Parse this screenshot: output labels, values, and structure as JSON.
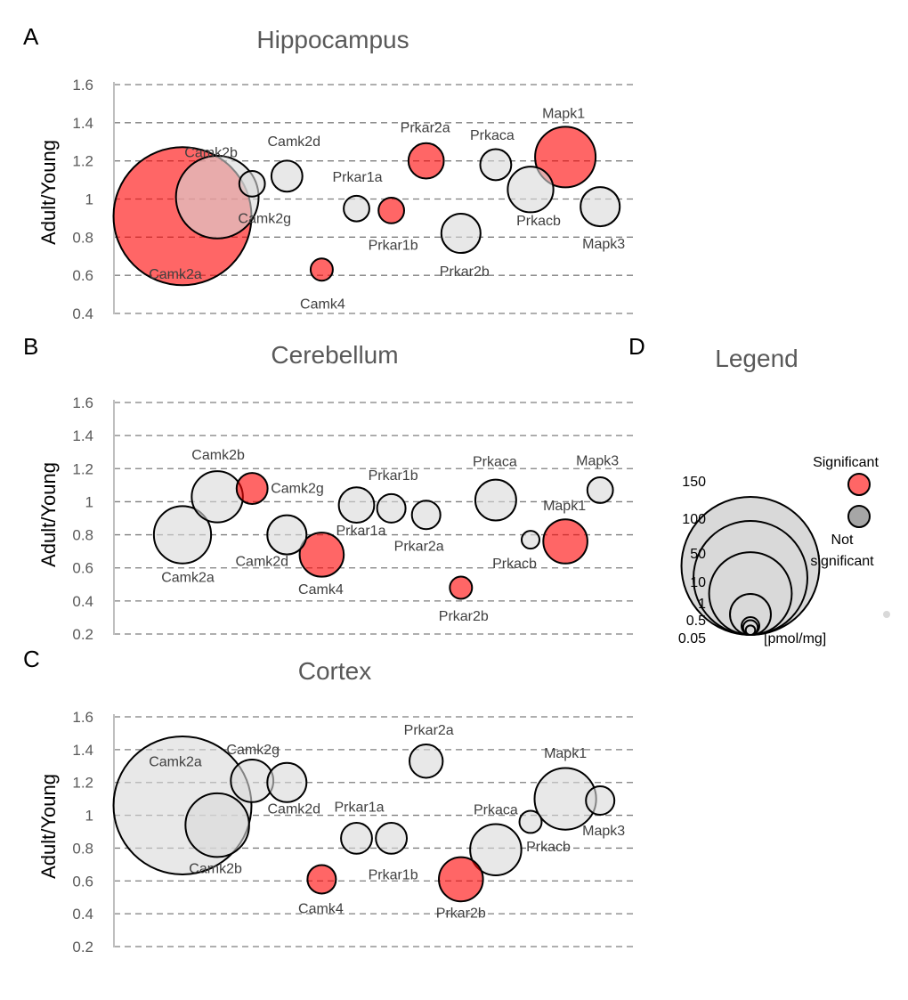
{
  "colors": {
    "significant": "#ff0000",
    "not_significant": "#d9d9d9",
    "bubble_alpha": 0.6
  },
  "chart_data": [
    {
      "type": "scatter",
      "panel": "A",
      "title": "Hippocampus",
      "xlabel": "",
      "ylabel": "Adult/Young",
      "ylim": [
        0.4,
        1.6
      ],
      "yticks": [
        "0.4",
        "0.6",
        "0.8",
        "1",
        "1.2",
        "1.4",
        "1.6"
      ],
      "points": [
        {
          "label": "Camk2a",
          "x": 1,
          "y": 0.91,
          "size": 150,
          "significant": true
        },
        {
          "label": "Camk2b",
          "x": 2,
          "y": 1.01,
          "size": 50,
          "significant": false
        },
        {
          "label": "Camk2g",
          "x": 3,
          "y": 1.08,
          "size": 3,
          "significant": false
        },
        {
          "label": "Camk2d",
          "x": 4,
          "y": 1.12,
          "size": 5,
          "significant": false
        },
        {
          "label": "Camk4",
          "x": 5,
          "y": 0.63,
          "size": 2,
          "significant": true
        },
        {
          "label": "Prkar1a",
          "x": 6,
          "y": 0.95,
          "size": 3,
          "significant": false
        },
        {
          "label": "Prkar1b",
          "x": 7,
          "y": 0.94,
          "size": 3,
          "significant": true
        },
        {
          "label": "Prkar2a",
          "x": 8,
          "y": 1.2,
          "size": 7,
          "significant": true
        },
        {
          "label": "Prkar2b",
          "x": 9,
          "y": 0.82,
          "size": 9,
          "significant": false
        },
        {
          "label": "Prkaca",
          "x": 10,
          "y": 1.18,
          "size": 5,
          "significant": false
        },
        {
          "label": "Prkacb",
          "x": 11,
          "y": 1.05,
          "size": 13,
          "significant": false
        },
        {
          "label": "Mapk1",
          "x": 12,
          "y": 1.22,
          "size": 25,
          "significant": true
        },
        {
          "label": "Mapk3",
          "x": 13,
          "y": 0.96,
          "size": 9,
          "significant": false
        }
      ]
    },
    {
      "type": "scatter",
      "panel": "B",
      "title": "Cerebellum",
      "xlabel": "",
      "ylabel": "Adult/Young",
      "ylim": [
        0.2,
        1.6
      ],
      "yticks": [
        "0.2",
        "0.4",
        "0.6",
        "0.8",
        "1",
        "1.2",
        "1.4",
        "1.6"
      ],
      "points": [
        {
          "label": "Camk2a",
          "x": 1,
          "y": 0.8,
          "size": 22,
          "significant": false
        },
        {
          "label": "Camk2b",
          "x": 2,
          "y": 1.03,
          "size": 17,
          "significant": false
        },
        {
          "label": "Camk2g",
          "x": 3,
          "y": 1.08,
          "size": 5,
          "significant": true
        },
        {
          "label": "Camk2d",
          "x": 4,
          "y": 0.8,
          "size": 9,
          "significant": false
        },
        {
          "label": "Camk4",
          "x": 5,
          "y": 0.68,
          "size": 12,
          "significant": true
        },
        {
          "label": "Prkar1a",
          "x": 6,
          "y": 0.98,
          "size": 7,
          "significant": false
        },
        {
          "label": "Prkar1b",
          "x": 7,
          "y": 0.96,
          "size": 4,
          "significant": false
        },
        {
          "label": "Prkar2a",
          "x": 8,
          "y": 0.92,
          "size": 4,
          "significant": false
        },
        {
          "label": "Prkar2b",
          "x": 9,
          "y": 0.48,
          "size": 2,
          "significant": true
        },
        {
          "label": "Prkaca",
          "x": 10,
          "y": 1.01,
          "size": 10,
          "significant": false
        },
        {
          "label": "Prkacb",
          "x": 11,
          "y": 0.77,
          "size": 1,
          "significant": false
        },
        {
          "label": "Mapk1",
          "x": 12,
          "y": 0.76,
          "size": 12,
          "significant": true
        },
        {
          "label": "Mapk3",
          "x": 13,
          "y": 1.07,
          "size": 3,
          "significant": false
        }
      ]
    },
    {
      "type": "scatter",
      "panel": "C",
      "title": "Cortex",
      "xlabel": "",
      "ylabel": "Adult/Young",
      "ylim": [
        0.2,
        1.6
      ],
      "yticks": [
        "0.2",
        "0.4",
        "0.6",
        "0.8",
        "1",
        "1.2",
        "1.4",
        "1.6"
      ],
      "points": [
        {
          "label": "Camk2a",
          "x": 1,
          "y": 1.06,
          "size": 150,
          "significant": false
        },
        {
          "label": "Camk2b",
          "x": 2,
          "y": 0.94,
          "size": 28,
          "significant": false
        },
        {
          "label": "Camk2g",
          "x": 3,
          "y": 1.21,
          "size": 11,
          "significant": false
        },
        {
          "label": "Camk2d",
          "x": 4,
          "y": 1.2,
          "size": 9,
          "significant": false
        },
        {
          "label": "Camk4",
          "x": 5,
          "y": 0.61,
          "size": 4,
          "significant": true
        },
        {
          "label": "Prkar1a",
          "x": 6,
          "y": 0.86,
          "size": 5,
          "significant": false
        },
        {
          "label": "Prkar1b",
          "x": 7,
          "y": 0.86,
          "size": 5,
          "significant": false
        },
        {
          "label": "Prkar2a",
          "x": 8,
          "y": 1.33,
          "size": 6,
          "significant": false
        },
        {
          "label": "Prkar2b",
          "x": 9,
          "y": 0.61,
          "size": 12,
          "significant": true
        },
        {
          "label": "Prkaca",
          "x": 10,
          "y": 0.79,
          "size": 17,
          "significant": false
        },
        {
          "label": "Prkacb",
          "x": 11,
          "y": 0.96,
          "size": 2,
          "significant": false
        },
        {
          "label": "Mapk1",
          "x": 12,
          "y": 1.1,
          "size": 26,
          "significant": false
        },
        {
          "label": "Mapk3",
          "x": 13,
          "y": 1.09,
          "size": 4,
          "significant": false
        }
      ]
    }
  ],
  "legend": {
    "panel": "D",
    "title": "Legend",
    "sizes": [
      {
        "label": "150",
        "value": 150
      },
      {
        "label": "100",
        "value": 100
      },
      {
        "label": "50",
        "value": 50
      },
      {
        "label": "10",
        "value": 10
      },
      {
        "label": "1",
        "value": 1
      },
      {
        "label": "0.5",
        "value": 0.5
      },
      {
        "label": "0.05",
        "value": 0.05
      }
    ],
    "unit": "[pmol/mg]",
    "significant_label": "Significant",
    "not_significant_label_1": "Not",
    "not_significant_label_2": "significant"
  }
}
